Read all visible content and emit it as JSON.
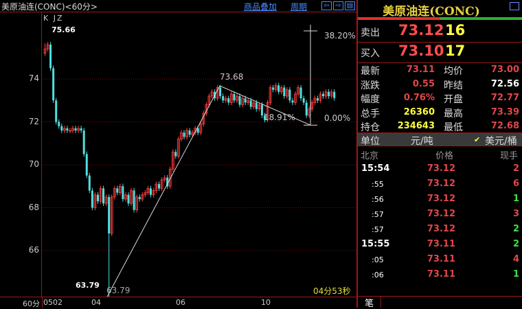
{
  "header": {
    "title": "美原油连(CONC)<60分>",
    "overlay_link": "商品叠加",
    "period_link": "周期",
    "nav_left": "⇦",
    "nav_right": "⇨",
    "layout": "▤"
  },
  "chart": {
    "indicator_label": "K  JZ",
    "high_label": "75.66",
    "low_label": "63.79",
    "low_label2": "63.79",
    "fib_top": "38.20%",
    "fib_mid": "18.91%",
    "fib_zero": "0.00%",
    "fib_peak": "73.68",
    "countdown": "04分53秒",
    "period": "60分"
  },
  "chart_data": {
    "type": "candlestick",
    "y_ticks": [
      "74",
      "72",
      "70",
      "68",
      "66"
    ],
    "x_ticks": [
      "0502",
      "04",
      "06",
      "10"
    ],
    "ylim": [
      63.3,
      76.2
    ],
    "closes": [
      75.4,
      75.6,
      74.5,
      73.0,
      72.0,
      71.8,
      71.6,
      71.7,
      71.6,
      71.6,
      71.7,
      71.6,
      71.7,
      71.6,
      70.5,
      69.5,
      68.8,
      68.0,
      68.6,
      68.3,
      68.9,
      68.2,
      68.5,
      66.8,
      68.5,
      68.9,
      68.7,
      69.0,
      68.4,
      68.6,
      68.2,
      68.8,
      67.9,
      68.5,
      68.4,
      68.6,
      68.7,
      68.9,
      68.6,
      68.8,
      69.1,
      68.9,
      69.3,
      69.4,
      69.0,
      69.8,
      70.6,
      70.4,
      71.2,
      71.5,
      71.3,
      71.6,
      71.4,
      71.5,
      71.7,
      71.5,
      71.9,
      72.4,
      72.8,
      73.2,
      73.4,
      73.1,
      73.6,
      73.2,
      73.0,
      73.1,
      72.9,
      73.3,
      73.0,
      73.2,
      72.8,
      73.1,
      72.9,
      73.0,
      72.7,
      72.9,
      72.6,
      72.8,
      72.3,
      72.1,
      72.9,
      73.6,
      73.5,
      73.7,
      73.4,
      73.6,
      73.2,
      73.5,
      73.0,
      72.9,
      73.3,
      73.6,
      73.1,
      72.9,
      72.3,
      72.6,
      72.9,
      73.1,
      73.0,
      73.3,
      73.2,
      73.4,
      73.2,
      73.4,
      73.11
    ],
    "high": 75.66,
    "low": 63.79
  },
  "quote": {
    "name": "美原油连(CONC)",
    "sell_label": "卖出",
    "sell_price": "73.12",
    "sell_vol": "16",
    "buy_label": "买入",
    "buy_price": "73.10",
    "buy_vol": "17",
    "stats": [
      {
        "l1": "最新",
        "v1": "73.11",
        "l2": "均价",
        "v2": "73.00",
        "c1": "dred",
        "c2": "dred"
      },
      {
        "l1": "涨跌",
        "v1": "0.55",
        "l2": "昨结",
        "v2": "72.56",
        "c1": "dred",
        "c2": "wht"
      },
      {
        "l1": "幅度",
        "v1": "0.76%",
        "l2": "开盘",
        "v2": "72.77",
        "c1": "dred",
        "c2": "dred"
      },
      {
        "l1": "总手",
        "v1": "26360",
        "l2": "最高",
        "v2": "73.39",
        "c1": "yel",
        "c2": "dred"
      },
      {
        "l1": "持仓",
        "v1": "234643",
        "l2": "最低",
        "v2": "72.68",
        "c1": "yel",
        "c2": "dred"
      }
    ],
    "unit_label": "单位",
    "unit_a": "元/吨",
    "unit_b": "美元/桶",
    "unit_check": "✔"
  },
  "trades": {
    "headers": [
      "北京",
      "价格",
      "现手"
    ],
    "rows": [
      {
        "t": "15:54",
        "p": "73.12",
        "v": "2",
        "c": "dred",
        "big": true
      },
      {
        "t": ":55",
        "p": "73.12",
        "v": "6",
        "c": "dred"
      },
      {
        "t": ":56",
        "p": "73.12",
        "v": "1",
        "c": "grn"
      },
      {
        "t": ":57",
        "p": "73.12",
        "v": "3",
        "c": "dred"
      },
      {
        "t": ":57",
        "p": "73.12",
        "v": "2",
        "c": "grn"
      },
      {
        "t": "15:55",
        "p": "73.11",
        "v": "2",
        "c": "grn",
        "big": true
      },
      {
        "t": ":05",
        "p": "73.11",
        "v": "4",
        "c": "dred"
      },
      {
        "t": ":06",
        "p": "73.11",
        "v": "1",
        "c": "grn"
      }
    ]
  },
  "tab": "笔"
}
